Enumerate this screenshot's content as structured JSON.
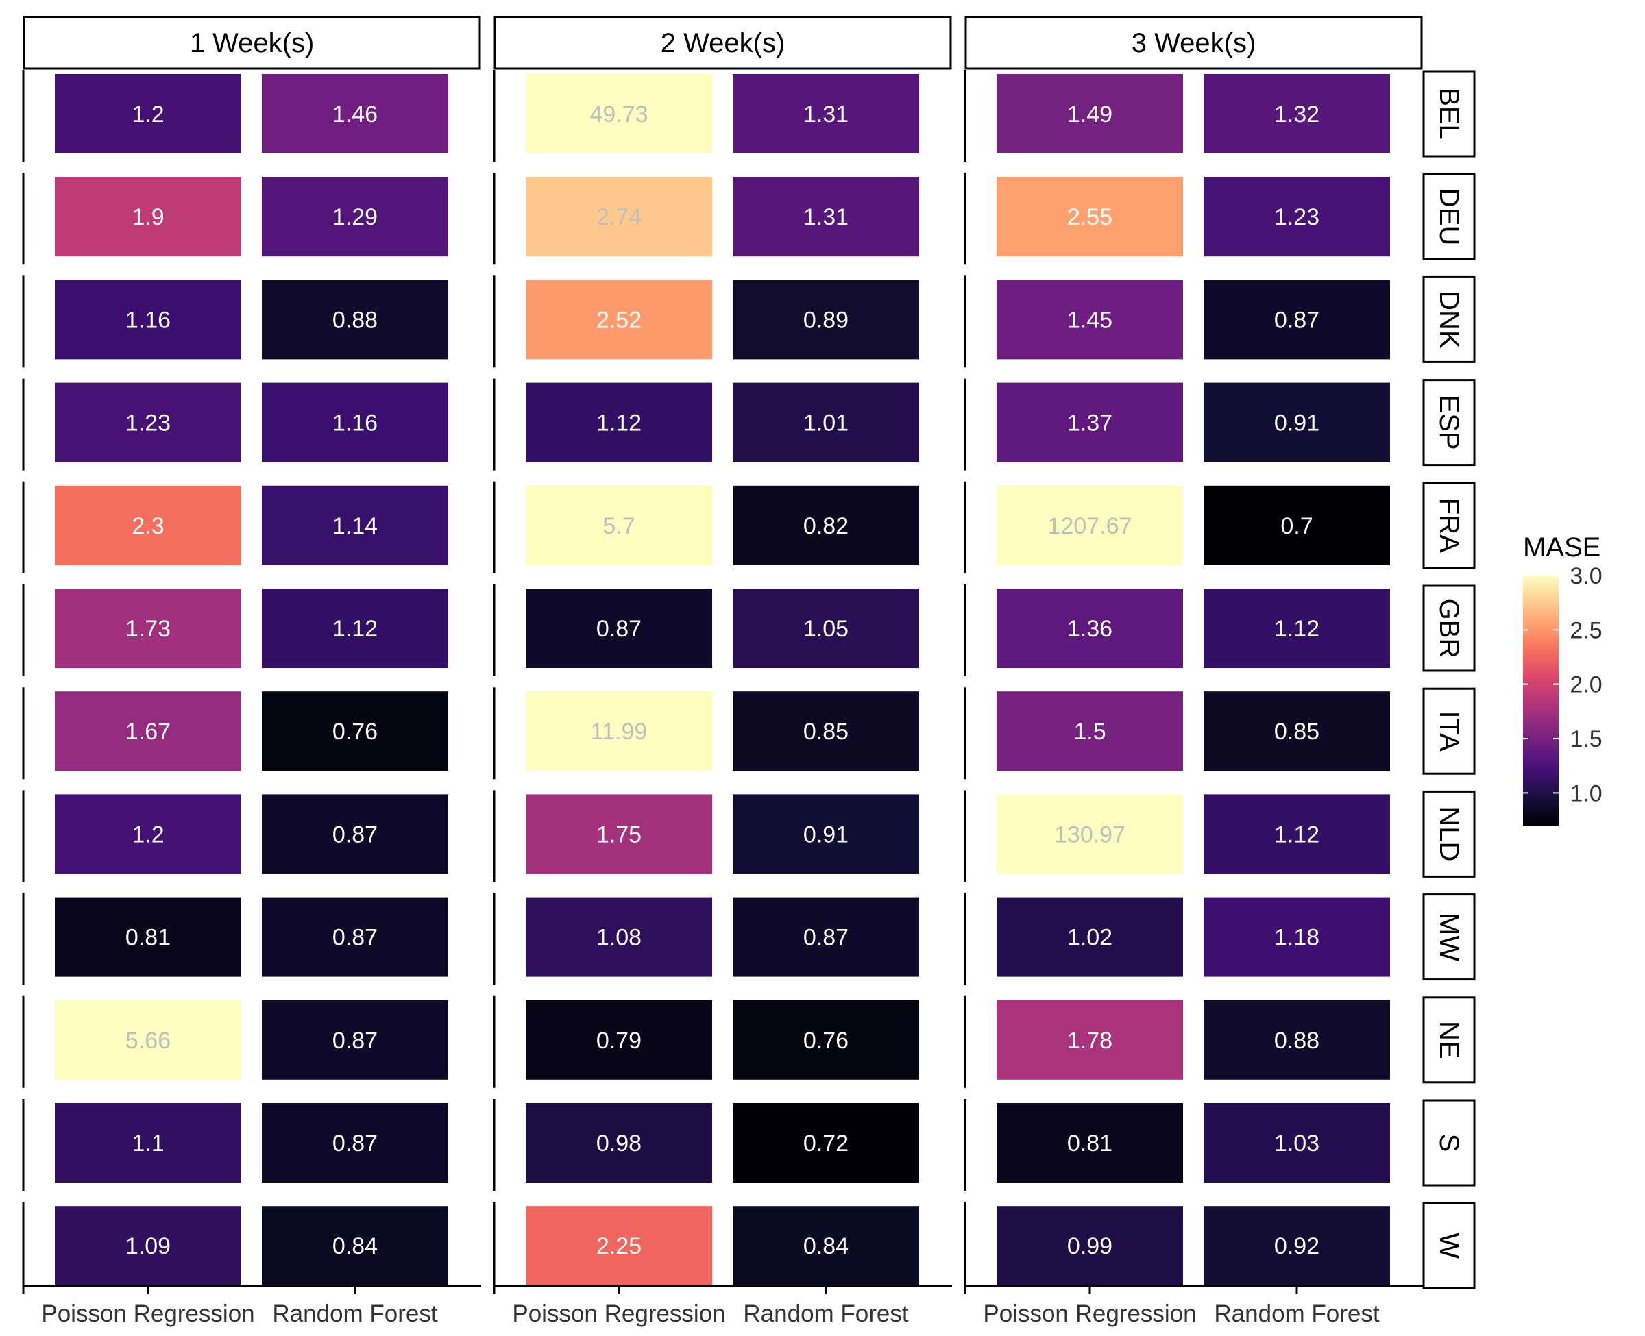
{
  "chart_data": {
    "type": "heatmap",
    "facet_columns": [
      "1 Week(s)",
      "2 Week(s)",
      "3 Week(s)"
    ],
    "facet_rows": [
      "BEL",
      "DEU",
      "DNK",
      "ESP",
      "FRA",
      "GBR",
      "ITA",
      "NLD",
      "MW",
      "NE",
      "S",
      "W"
    ],
    "categories": [
      "Poisson Regression",
      "Random Forest"
    ],
    "values": [
      [
        [
          1.2,
          1.46
        ],
        [
          49.73,
          1.31
        ],
        [
          1.49,
          1.32
        ]
      ],
      [
        [
          1.9,
          1.29
        ],
        [
          2.74,
          1.31
        ],
        [
          2.55,
          1.23
        ]
      ],
      [
        [
          1.16,
          0.88
        ],
        [
          2.52,
          0.89
        ],
        [
          1.45,
          0.87
        ]
      ],
      [
        [
          1.23,
          1.16
        ],
        [
          1.12,
          1.01
        ],
        [
          1.37,
          0.91
        ]
      ],
      [
        [
          2.3,
          1.14
        ],
        [
          5.7,
          0.82
        ],
        [
          1207.67,
          0.7
        ]
      ],
      [
        [
          1.73,
          1.12
        ],
        [
          0.87,
          1.05
        ],
        [
          1.36,
          1.12
        ]
      ],
      [
        [
          1.67,
          0.76
        ],
        [
          11.99,
          0.85
        ],
        [
          1.5,
          0.85
        ]
      ],
      [
        [
          1.2,
          0.87
        ],
        [
          1.75,
          0.91
        ],
        [
          130.97,
          1.12
        ]
      ],
      [
        [
          0.81,
          0.87
        ],
        [
          1.08,
          0.87
        ],
        [
          1.02,
          1.18
        ]
      ],
      [
        [
          5.66,
          0.87
        ],
        [
          0.79,
          0.76
        ],
        [
          1.78,
          0.88
        ]
      ],
      [
        [
          1.1,
          0.87
        ],
        [
          0.98,
          0.72
        ],
        [
          0.81,
          1.03
        ]
      ],
      [
        [
          1.09,
          0.84
        ],
        [
          2.25,
          0.84
        ],
        [
          0.99,
          0.92
        ]
      ]
    ],
    "labels": [
      [
        [
          "1.2",
          "1.46"
        ],
        [
          "49.73",
          "1.31"
        ],
        [
          "1.49",
          "1.32"
        ]
      ],
      [
        [
          "1.9",
          "1.29"
        ],
        [
          "2.74",
          "1.31"
        ],
        [
          "2.55",
          "1.23"
        ]
      ],
      [
        [
          "1.16",
          "0.88"
        ],
        [
          "2.52",
          "0.89"
        ],
        [
          "1.45",
          "0.87"
        ]
      ],
      [
        [
          "1.23",
          "1.16"
        ],
        [
          "1.12",
          "1.01"
        ],
        [
          "1.37",
          "0.91"
        ]
      ],
      [
        [
          "2.3",
          "1.14"
        ],
        [
          "5.7",
          "0.82"
        ],
        [
          "1207.67",
          "0.7"
        ]
      ],
      [
        [
          "1.73",
          "1.12"
        ],
        [
          "0.87",
          "1.05"
        ],
        [
          "1.36",
          "1.12"
        ]
      ],
      [
        [
          "1.67",
          "0.76"
        ],
        [
          "11.99",
          "0.85"
        ],
        [
          "1.5",
          "0.85"
        ]
      ],
      [
        [
          "1.2",
          "0.87"
        ],
        [
          "1.75",
          "0.91"
        ],
        [
          "130.97",
          "1.12"
        ]
      ],
      [
        [
          "0.81",
          "0.87"
        ],
        [
          "1.08",
          "0.87"
        ],
        [
          "1.02",
          "1.18"
        ]
      ],
      [
        [
          "5.66",
          "0.87"
        ],
        [
          "0.79",
          "0.76"
        ],
        [
          "1.78",
          "0.88"
        ]
      ],
      [
        [
          "1.1",
          "0.87"
        ],
        [
          "0.98",
          "0.72"
        ],
        [
          "0.81",
          "1.03"
        ]
      ],
      [
        [
          "1.09",
          "0.84"
        ],
        [
          "2.25",
          "0.84"
        ],
        [
          "0.99",
          "0.92"
        ]
      ]
    ],
    "legend": {
      "title": "MASE",
      "ticks": [
        "1.0",
        "1.5",
        "2.0",
        "2.5",
        "3.0"
      ],
      "tick_values": [
        1.0,
        1.5,
        2.0,
        2.5,
        3.0
      ],
      "range": [
        0.7,
        3.0
      ],
      "palette": [
        "#000004",
        "#140e36",
        "#3b0f70",
        "#641a80",
        "#8c2981",
        "#b73779",
        "#de4968",
        "#f7705c",
        "#fe9f6d",
        "#fecf92",
        "#fcfdbf"
      ],
      "placement": "right"
    },
    "label_colors": {
      "on_dark": "#ffffff",
      "on_light": "#bfbfbf"
    }
  }
}
